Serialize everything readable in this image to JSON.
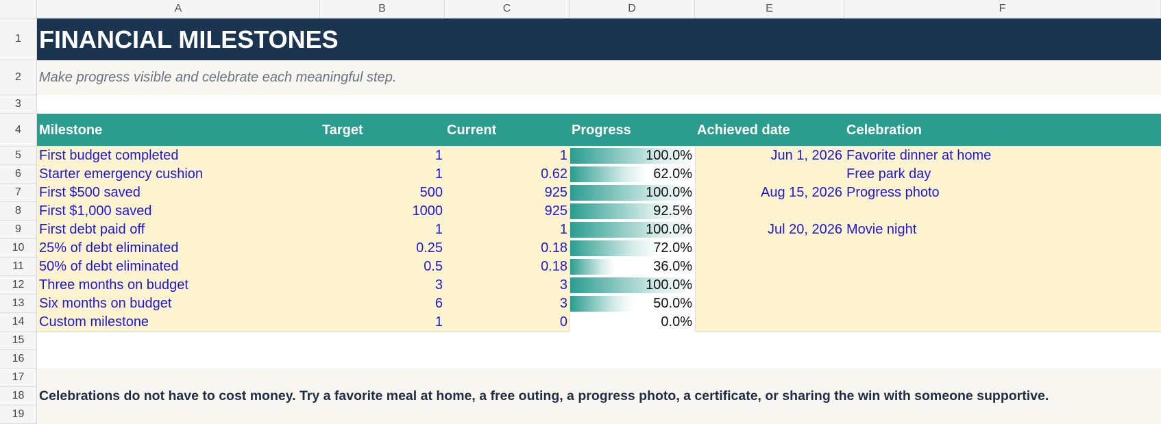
{
  "columns": [
    "A",
    "B",
    "C",
    "D",
    "E",
    "F"
  ],
  "rows": [
    "1",
    "2",
    "3",
    "4",
    "5",
    "6",
    "7",
    "8",
    "9",
    "10",
    "11",
    "12",
    "13",
    "14",
    "15",
    "16",
    "17",
    "18",
    "19"
  ],
  "title": "FINANCIAL MILESTONES",
  "subtitle": "Make progress visible and celebrate each meaningful step.",
  "headers": {
    "milestone": "Milestone",
    "target": "Target",
    "current": "Current",
    "progress": "Progress",
    "achieved": "Achieved date",
    "celebration": "Celebration"
  },
  "milestones": [
    {
      "milestone": "First budget completed",
      "target": "1",
      "current": "1",
      "progress": "100.0%",
      "progress_value": 1.0,
      "achieved": "Jun 1, 2026",
      "celebration": "Favorite dinner at home"
    },
    {
      "milestone": "Starter emergency cushion",
      "target": "1",
      "current": "0.62",
      "progress": "62.0%",
      "progress_value": 0.62,
      "achieved": "",
      "celebration": "Free park day"
    },
    {
      "milestone": "First $500 saved",
      "target": "500",
      "current": "925",
      "progress": "100.0%",
      "progress_value": 1.0,
      "achieved": "Aug 15, 2026",
      "celebration": "Progress photo"
    },
    {
      "milestone": "First $1,000 saved",
      "target": "1000",
      "current": "925",
      "progress": "92.5%",
      "progress_value": 0.925,
      "achieved": "",
      "celebration": ""
    },
    {
      "milestone": "First debt paid off",
      "target": "1",
      "current": "1",
      "progress": "100.0%",
      "progress_value": 1.0,
      "achieved": "Jul 20, 2026",
      "celebration": "Movie night"
    },
    {
      "milestone": "25% of debt eliminated",
      "target": "0.25",
      "current": "0.18",
      "progress": "72.0%",
      "progress_value": 0.72,
      "achieved": "",
      "celebration": ""
    },
    {
      "milestone": "50% of debt eliminated",
      "target": "0.5",
      "current": "0.18",
      "progress": "36.0%",
      "progress_value": 0.36,
      "achieved": "",
      "celebration": ""
    },
    {
      "milestone": "Three months on budget",
      "target": "3",
      "current": "3",
      "progress": "100.0%",
      "progress_value": 1.0,
      "achieved": "",
      "celebration": ""
    },
    {
      "milestone": "Six months on budget",
      "target": "6",
      "current": "3",
      "progress": "50.0%",
      "progress_value": 0.5,
      "achieved": "",
      "celebration": ""
    },
    {
      "milestone": "Custom milestone",
      "target": "1",
      "current": "0",
      "progress": "0.0%",
      "progress_value": 0.0,
      "achieved": "",
      "celebration": ""
    }
  ],
  "footnote": "Celebrations do not have to cost money. Try a favorite meal at home, a free outing, a progress photo, a certificate, or sharing the win with someone supportive.",
  "colors": {
    "title_bg": "#1b344f",
    "header_bg": "#2a9d8f",
    "data_bg": "#fff3d0",
    "note_bg": "#f8f6f0",
    "bar_color": "#2a9d8f",
    "input_text": "#1a1ad6"
  }
}
